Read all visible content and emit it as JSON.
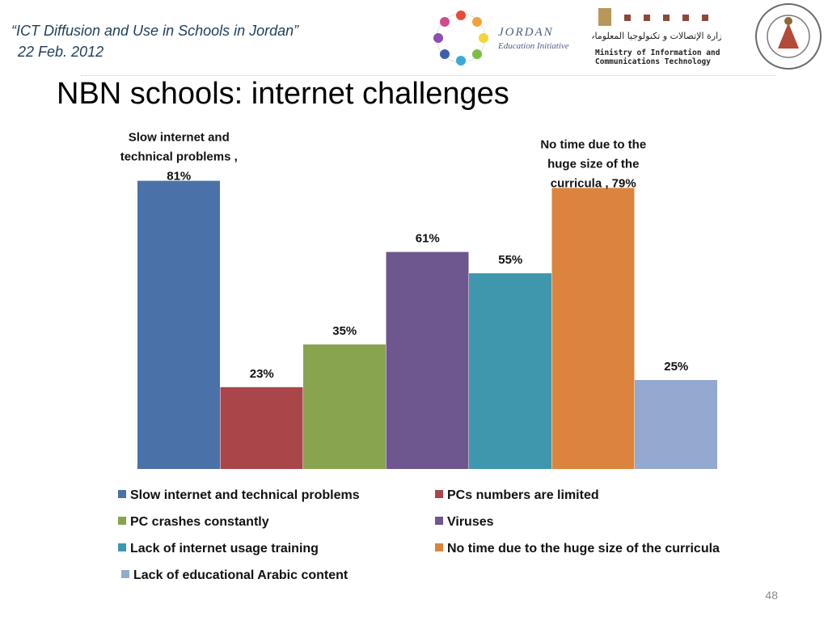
{
  "header": {
    "line1": "“ICT  Diffusion and Use in Schools in Jordan”",
    "line2": "22 Feb. 2012"
  },
  "logos": {
    "jei_line1": "JORDAN",
    "jei_line2": "Education Initiative",
    "ministry_arabic": "وزارة الإتصالات و تكنولوجيا المعلومات",
    "ministry_en1": "Ministry of Information and",
    "ministry_en2": "Communications Technology"
  },
  "slide": {
    "title": "NBN schools: internet challenges",
    "number": "48"
  },
  "chart_data": {
    "type": "bar",
    "ylim": [
      0,
      100
    ],
    "grid": false,
    "legend": "bottom",
    "series": [
      {
        "name": "Slow internet and technical problems",
        "value": 81,
        "label": "Slow internet and technical problems , 81%",
        "color": "#4a72a8"
      },
      {
        "name": "PCs numbers are limited",
        "value": 23,
        "label": "23%",
        "color": "#a8464a"
      },
      {
        "name": "PC crashes constantly",
        "value": 35,
        "label": "35%",
        "color": "#88a44f"
      },
      {
        "name": "Viruses",
        "value": 61,
        "label": "61%",
        "color": "#6e568f"
      },
      {
        "name": "Lack of internet usage training",
        "value": 55,
        "label": "55%",
        "color": "#3f97ae"
      },
      {
        "name": "No time due to the huge size of the curricula",
        "value": 79,
        "label": "No time due to the huge size of the curricula , 79%",
        "color": "#db843d"
      },
      {
        "name": "Lack of educational Arabic content",
        "value": 25,
        "label": "25%",
        "color": "#93a9cf"
      }
    ]
  }
}
